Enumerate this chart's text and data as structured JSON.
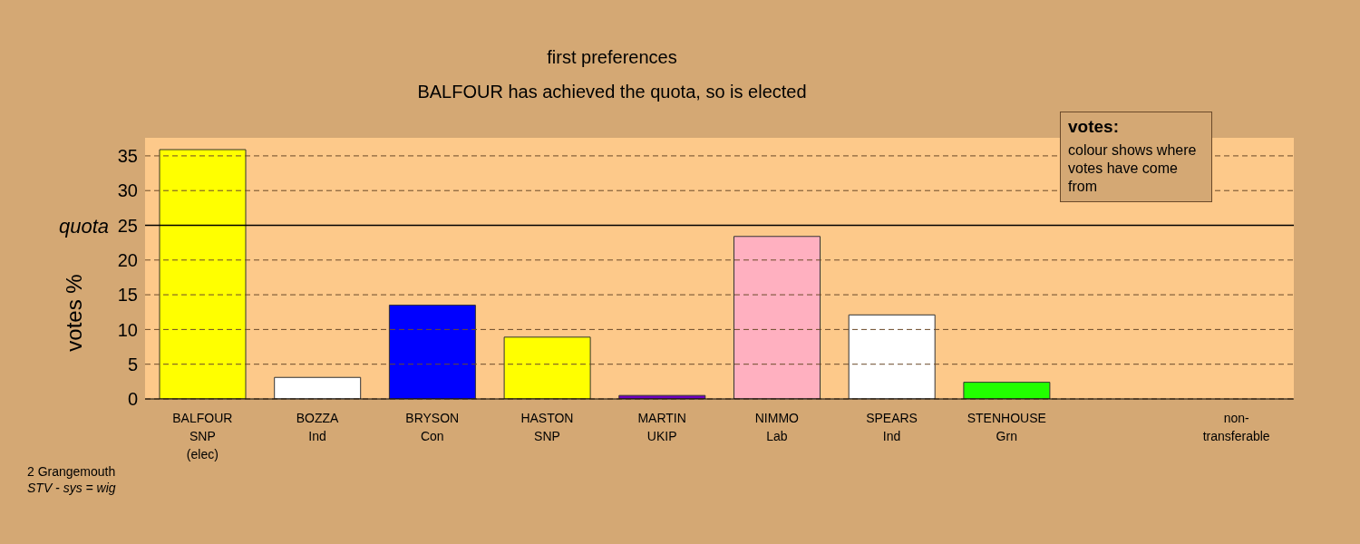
{
  "chart_data": {
    "type": "bar",
    "title": "first preferences",
    "subtitle": "BALFOUR has achieved the quota, so is elected",
    "ylabel": "votes %",
    "categories": [
      "BALFOUR\nSNP\n(elec)",
      "BOZZA\nInd",
      "BRYSON\nCon",
      "HASTON\nSNP",
      "MARTIN\nUKIP",
      "NIMMO\nLab",
      "SPEARS\nInd",
      "STENHOUSE\nGrn",
      null,
      "non-\ntransferable"
    ],
    "values": [
      35.9,
      3.1,
      13.5,
      8.9,
      0.5,
      23.4,
      12.1,
      2.4,
      null,
      0
    ],
    "colors": [
      "#ffff00",
      "#ffffff",
      "#0000ff",
      "#ffff00",
      "#7000c0",
      "#ffb0c0",
      "#ffffff",
      "#22ff00",
      "#ffffff",
      "#ffffff"
    ],
    "ylim": [
      0,
      37.6
    ],
    "yticks": [
      0,
      5,
      10,
      15,
      20,
      25,
      30,
      35
    ],
    "grid": "y",
    "ref_lines": [
      {
        "axis": "y",
        "value": 25,
        "label": "quota",
        "color": "#000000",
        "line_style": "solid"
      }
    ],
    "annotations": [
      "votes:",
      "colour shows where votes have come from",
      "2 Grangemouth",
      "STV - sys = wig"
    ]
  }
}
